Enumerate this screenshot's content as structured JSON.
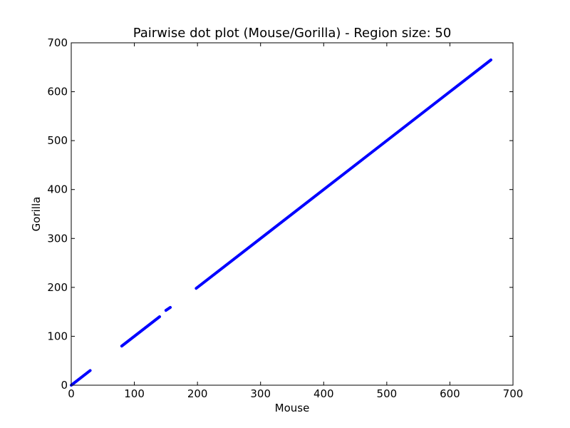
{
  "chart_data": {
    "type": "scatter",
    "title": "Pairwise dot plot (Mouse/Gorilla) - Region size: 50",
    "xlabel": "Mouse",
    "ylabel": "Gorilla",
    "xlim": [
      0,
      700
    ],
    "ylim": [
      0,
      700
    ],
    "xticks": [
      0,
      100,
      200,
      300,
      400,
      500,
      600,
      700
    ],
    "yticks": [
      0,
      100,
      200,
      300,
      400,
      500,
      600,
      700
    ],
    "xtick_labels": [
      "0",
      "100",
      "200",
      "300",
      "400",
      "500",
      "600",
      "700"
    ],
    "ytick_labels": [
      "0",
      "100",
      "200",
      "300",
      "400",
      "500",
      "600",
      "700"
    ],
    "grid": false,
    "marker_color": "#0000ff",
    "segments": [
      {
        "x": [
          0,
          30
        ],
        "y": [
          0,
          30
        ]
      },
      {
        "x": [
          80,
          140
        ],
        "y": [
          80,
          140
        ]
      },
      {
        "x": [
          150,
          157
        ],
        "y": [
          153,
          159
        ]
      },
      {
        "x": [
          198,
          665
        ],
        "y": [
          198,
          665
        ]
      }
    ]
  }
}
